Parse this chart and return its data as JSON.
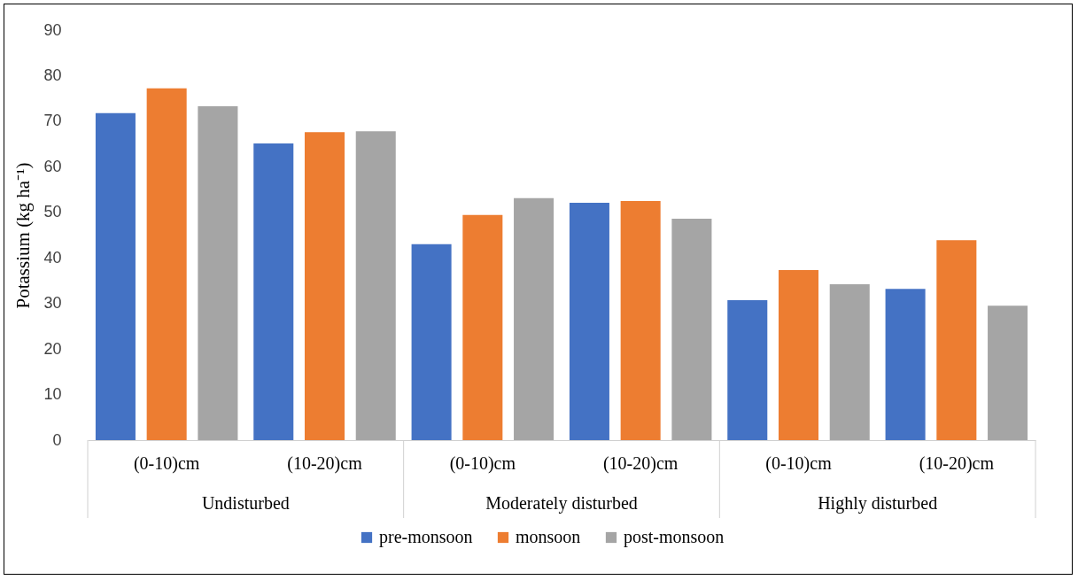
{
  "chart_data": {
    "type": "bar",
    "ylabel": "Potassium (kg ha⁻¹)",
    "categories": [
      "(0-10)cm",
      "(10-20)cm",
      "(0-10)cm",
      "(10-20)cm",
      "(0-10)cm",
      "(10-20)cm"
    ],
    "series": [
      {
        "name": "pre-monsoon",
        "color": "#4472c4",
        "values": [
          71.8,
          65.1,
          43.0,
          52.1,
          30.7,
          33.2
        ]
      },
      {
        "name": "monsoon",
        "color": "#ed7d31",
        "values": [
          77.2,
          67.6,
          49.4,
          52.5,
          37.3,
          43.9
        ]
      },
      {
        "name": "post-monsoon",
        "color": "#a5a5a5",
        "values": [
          73.3,
          67.8,
          53.1,
          48.6,
          34.2,
          29.5
        ]
      }
    ],
    "annotations": [
      "Undisturbed",
      "Moderately disturbed",
      "Highly disturbed"
    ],
    "ylim": [
      0,
      90
    ],
    "yticks": [
      0,
      10,
      20,
      30,
      40,
      50,
      60,
      70,
      80,
      90
    ],
    "grid": false,
    "legend": "bottom"
  }
}
